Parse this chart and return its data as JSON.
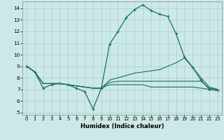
{
  "xlabel": "Humidex (Indice chaleur)",
  "xlim": [
    -0.5,
    23.5
  ],
  "ylim": [
    4.8,
    14.6
  ],
  "yticks": [
    5,
    6,
    7,
    8,
    9,
    10,
    11,
    12,
    13,
    14
  ],
  "xticks": [
    0,
    1,
    2,
    3,
    4,
    5,
    6,
    7,
    8,
    9,
    10,
    11,
    12,
    13,
    14,
    15,
    16,
    17,
    18,
    19,
    20,
    21,
    22,
    23
  ],
  "background_color": "#cce9e7",
  "grid_color": "#aacfcd",
  "line_color": "#1a6e66",
  "line1": {
    "x": [
      0,
      1,
      2,
      3,
      4,
      5,
      6,
      7,
      8,
      9,
      10,
      11,
      12,
      13,
      14,
      15,
      16,
      17,
      18,
      19,
      20,
      21,
      22,
      23
    ],
    "y": [
      9.0,
      8.5,
      7.1,
      7.4,
      7.5,
      7.4,
      7.1,
      6.8,
      5.3,
      7.1,
      10.9,
      12.0,
      13.2,
      13.9,
      14.3,
      13.8,
      13.5,
      13.3,
      11.8,
      9.8,
      8.9,
      7.8,
      7.0,
      6.9
    ]
  },
  "line2": {
    "x": [
      0,
      1,
      2,
      3,
      4,
      5,
      6,
      7,
      8,
      9,
      10,
      11,
      12,
      13,
      14,
      15,
      16,
      17,
      18,
      19,
      20,
      21,
      22,
      23
    ],
    "y": [
      9.0,
      8.5,
      7.5,
      7.5,
      7.5,
      7.4,
      7.3,
      7.2,
      7.1,
      7.1,
      7.8,
      8.0,
      8.2,
      8.4,
      8.5,
      8.6,
      8.7,
      9.0,
      9.3,
      9.7,
      8.9,
      8.0,
      7.2,
      7.0
    ]
  },
  "line3": {
    "x": [
      0,
      1,
      2,
      3,
      4,
      5,
      6,
      7,
      8,
      9,
      10,
      11,
      12,
      13,
      14,
      15,
      16,
      17,
      18,
      19,
      20,
      21,
      22,
      23
    ],
    "y": [
      9.0,
      8.5,
      7.5,
      7.5,
      7.5,
      7.4,
      7.3,
      7.2,
      7.1,
      7.1,
      7.6,
      7.7,
      7.7,
      7.7,
      7.7,
      7.7,
      7.7,
      7.7,
      7.7,
      7.7,
      7.7,
      7.7,
      7.1,
      7.0
    ]
  },
  "line4": {
    "x": [
      0,
      1,
      2,
      3,
      4,
      5,
      6,
      7,
      8,
      9,
      10,
      11,
      12,
      13,
      14,
      15,
      16,
      17,
      18,
      19,
      20,
      21,
      22,
      23
    ],
    "y": [
      9.0,
      8.5,
      7.5,
      7.5,
      7.5,
      7.4,
      7.3,
      7.2,
      7.1,
      7.1,
      7.4,
      7.4,
      7.4,
      7.4,
      7.4,
      7.2,
      7.2,
      7.2,
      7.2,
      7.2,
      7.2,
      7.1,
      7.0,
      6.9
    ]
  }
}
